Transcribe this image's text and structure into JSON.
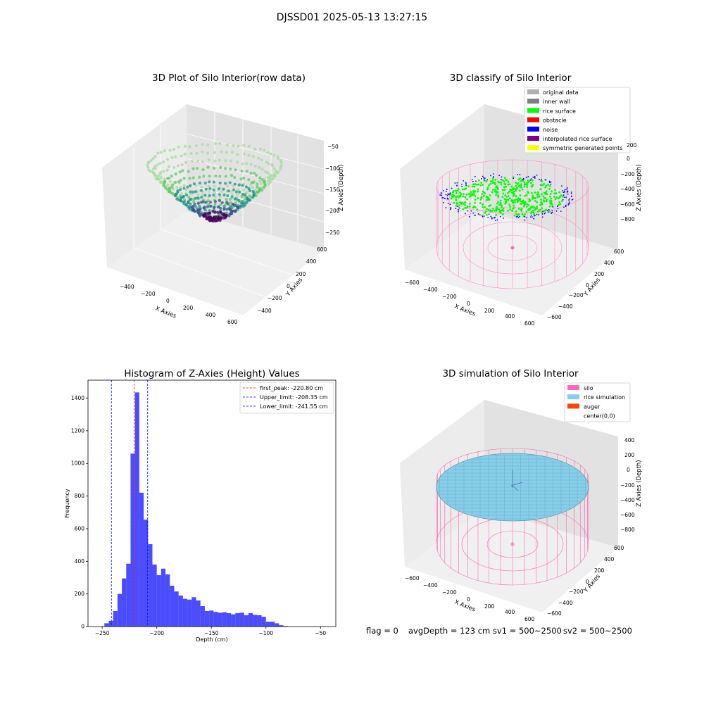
{
  "figure": {
    "title": "DJSSD01 2025-05-13 13:27:15"
  },
  "panels": {
    "raw": {
      "title": "3D Plot of Silo Interior(row data)",
      "xlabel": "X Axies",
      "ylabel": "Y Axies",
      "zlabel": "Z Axies (Depth)",
      "xticks": [
        "−400",
        "−200",
        "0",
        "200",
        "400",
        "600"
      ],
      "yticks": [
        "600",
        "400",
        "200",
        "0",
        "−200",
        "−400"
      ],
      "zticks": [
        "−50",
        "−100",
        "−150",
        "−200",
        "−250"
      ]
    },
    "classify": {
      "title": "3D classify of Silo Interior",
      "xlabel": "X Axies",
      "ylabel": "Y Axies",
      "zlabel": "Z Axies (Depth)",
      "xticks": [
        "−600",
        "−400",
        "−200",
        "0",
        "200",
        "400",
        "600"
      ],
      "yticks": [
        "600",
        "400",
        "200",
        "0",
        "−200",
        "−400",
        "−600"
      ],
      "zticks": [
        "200",
        "0",
        "−200",
        "−400",
        "−600",
        "−800"
      ],
      "legend": [
        {
          "label": "original data",
          "color": "#b0b0b0"
        },
        {
          "label": "inner wall",
          "color": "#808080"
        },
        {
          "label": "rice surface",
          "color": "#00ff00"
        },
        {
          "label": "obstacle",
          "color": "#ff0000"
        },
        {
          "label": "noise",
          "color": "#0000ff"
        },
        {
          "label": "interpolated rice surface",
          "color": "#800080"
        },
        {
          "label": "symmetric generated points",
          "color": "#ffff00"
        }
      ]
    },
    "simulation": {
      "title": "3D simulation of Silo Interior",
      "xlabel": "X Axies",
      "ylabel": "Y Axies",
      "zlabel": "Z Axies (Depth)",
      "xticks": [
        "−600",
        "−400",
        "−200",
        "0",
        "200",
        "400",
        "600"
      ],
      "yticks": [
        "600",
        "400",
        "200",
        "0",
        "−200",
        "−400",
        "−600"
      ],
      "zticks": [
        "400",
        "200",
        "0",
        "−200",
        "−400",
        "−600",
        "−800"
      ],
      "legend": [
        {
          "label": "silo",
          "color": "#ff69b4",
          "swatch": true
        },
        {
          "label": "rice simulation",
          "color": "#87ceeb",
          "swatch": true
        },
        {
          "label": "auger",
          "color": "#ff4500",
          "swatch": true
        },
        {
          "label": "center(0,0)",
          "color": "#ffffff",
          "swatch": false
        }
      ]
    }
  },
  "chart_data": {
    "type": "bar",
    "title": "Histogram of Z-Axies (Height) Values",
    "xlabel": "Depth (cm)",
    "ylabel": "Frequency",
    "xlim": [
      -263,
      -36
    ],
    "ylim": [
      0,
      1510
    ],
    "xticks": [
      -250,
      -200,
      -150,
      -100,
      -50
    ],
    "yticks": [
      0,
      200,
      400,
      600,
      800,
      1000,
      1200,
      1400
    ],
    "bin_width": 4.0,
    "bin_starts": [
      -248,
      -244,
      -240,
      -236,
      -232,
      -228,
      -224,
      -220,
      -216,
      -212,
      -208,
      -204,
      -200,
      -196,
      -192,
      -188,
      -184,
      -180,
      -176,
      -172,
      -168,
      -164,
      -160,
      -156,
      -152,
      -148,
      -144,
      -140,
      -136,
      -132,
      -128,
      -124,
      -120,
      -116,
      -112,
      -108,
      -104,
      -100,
      -96,
      -92,
      -88,
      -84
    ],
    "counts": [
      20,
      35,
      95,
      200,
      295,
      385,
      1060,
      1435,
      820,
      655,
      505,
      380,
      315,
      355,
      320,
      250,
      215,
      190,
      170,
      165,
      180,
      160,
      125,
      95,
      98,
      90,
      85,
      88,
      82,
      75,
      82,
      85,
      70,
      82,
      72,
      70,
      60,
      30,
      30,
      20,
      8,
      3
    ],
    "color": "#0000ff",
    "vlines": [
      {
        "label": "first_peak: -220.80 cm",
        "x": -220.8,
        "color": "#ff0000"
      },
      {
        "label": "Upper_limit: -208.35 cm",
        "x": -208.35,
        "color": "#0000ff"
      },
      {
        "label": "Lower_limit: -241.55 cm",
        "x": -241.55,
        "color": "#0000ff"
      }
    ],
    "legend_position": "upper right",
    "grid": false
  },
  "footer": {
    "flag": "flag = 0",
    "avg": "avgDepth = 123 cm  sv1 = 500~2500",
    "sv2": "sv2 = 500~2500"
  }
}
